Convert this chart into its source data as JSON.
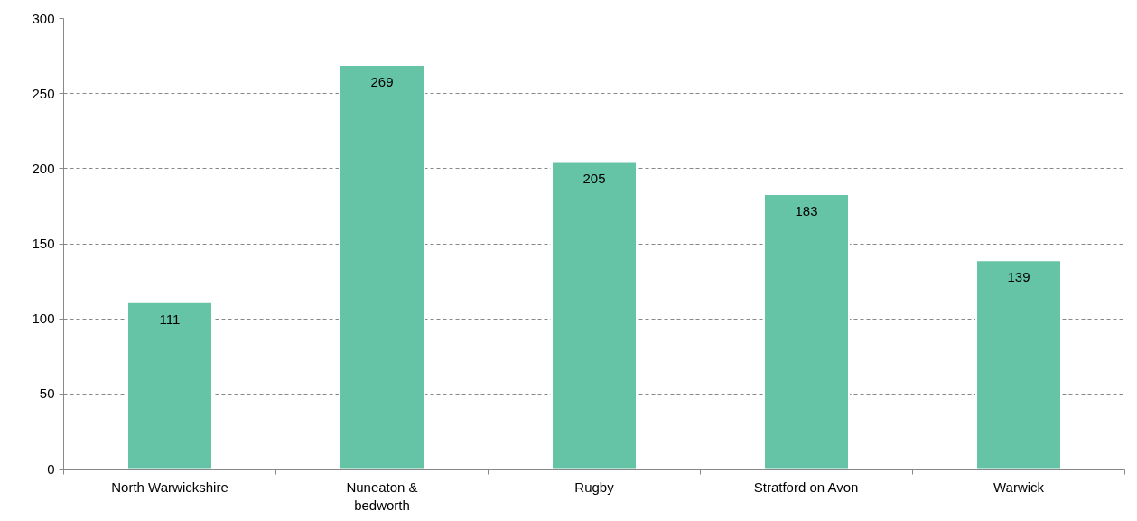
{
  "chart_data": {
    "type": "bar",
    "categories": [
      "North Warwickshire",
      "Nuneaton & bedworth",
      "Rugby",
      "Stratford on Avon",
      "Warwick"
    ],
    "values": [
      111,
      269,
      205,
      183,
      139
    ],
    "color": "#66c4a6",
    "ylim": [
      0,
      300
    ],
    "yticks": [
      0,
      50,
      100,
      150,
      200,
      250,
      300
    ],
    "grid": "y",
    "data_labels": true
  }
}
